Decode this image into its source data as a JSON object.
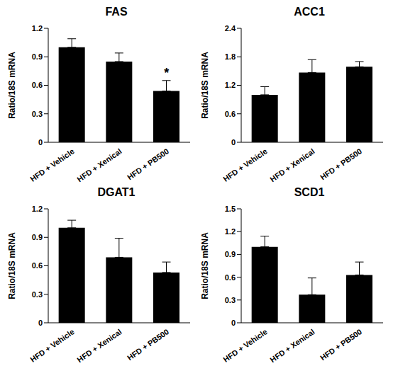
{
  "chart_data": [
    {
      "type": "bar",
      "title": "FAS",
      "y_label": "Ratio/18S mRNA",
      "categories": [
        "HFD + Vehicle",
        "HFD + Xenical",
        "HFD + PB500"
      ],
      "values": [
        1.0,
        0.85,
        0.54
      ],
      "errors": [
        0.09,
        0.09,
        0.11
      ],
      "color": "#000000",
      "ylim": [
        0,
        1.2
      ],
      "yticks": [
        0,
        0.3,
        0.6,
        0.9,
        1.2
      ],
      "annotations": [
        {
          "category": "HFD + PB500",
          "text": "*"
        }
      ]
    },
    {
      "type": "bar",
      "title": "ACC1",
      "y_label": "Ratio/18S mRNA",
      "categories": [
        "HFD + Vehicle",
        "HFD + Xenical",
        "HFD + PB500"
      ],
      "values": [
        1.0,
        1.47,
        1.59
      ],
      "errors": [
        0.17,
        0.27,
        0.11
      ],
      "color": "#000000",
      "ylim": [
        0,
        2.4
      ],
      "yticks": [
        0,
        0.6,
        1.2,
        1.8,
        2.4
      ]
    },
    {
      "type": "bar",
      "title": "DGAT1",
      "y_label": "Ratio/18S mRNA",
      "categories": [
        "HFD + Vehicle",
        "HFD + Xenical",
        "HFD + PB500"
      ],
      "values": [
        1.0,
        0.69,
        0.53
      ],
      "errors": [
        0.08,
        0.2,
        0.11
      ],
      "color": "#000000",
      "ylim": [
        0,
        1.2
      ],
      "yticks": [
        0,
        0.3,
        0.6,
        0.9,
        1.2
      ]
    },
    {
      "type": "bar",
      "title": "SCD1",
      "y_label": "Ratio/18S mRNA",
      "categories": [
        "HFD + Vehicle",
        "HFD + Xenical",
        "HFD + PB500"
      ],
      "values": [
        1.0,
        0.37,
        0.63
      ],
      "errors": [
        0.14,
        0.22,
        0.17
      ],
      "color": "#000000",
      "ylim": [
        0,
        1.5
      ],
      "yticks": [
        0,
        0.3,
        0.6,
        0.9,
        1.2,
        1.5
      ]
    }
  ]
}
